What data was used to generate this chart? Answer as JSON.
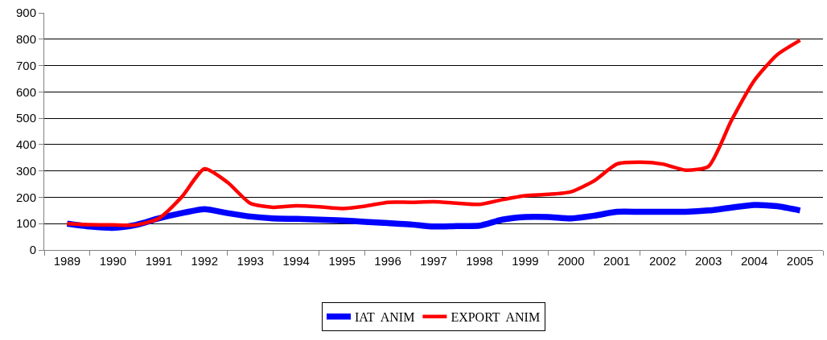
{
  "chart_data": {
    "type": "line",
    "x": [
      1989,
      1989.5,
      1990,
      1990.5,
      1991,
      1991.5,
      1992,
      1992.5,
      1993,
      1993.5,
      1994,
      1994.5,
      1995,
      1995.5,
      1996,
      1996.5,
      1997,
      1997.5,
      1998,
      1998.5,
      1999,
      1999.5,
      2000,
      2000.5,
      2001,
      2001.5,
      2002,
      2002.5,
      2003,
      2003.5,
      2004,
      2004.5,
      2005
    ],
    "series": [
      {
        "name": "IAT  ANIM",
        "color": "#0000ff",
        "values": [
          100,
          89,
          84,
          95,
          120,
          140,
          155,
          140,
          127,
          120,
          118,
          115,
          112,
          107,
          102,
          97,
          89,
          91,
          92,
          115,
          125,
          125,
          120,
          130,
          145,
          145,
          145,
          145,
          150,
          161,
          171,
          166,
          150
        ]
      },
      {
        "name": "EXPORT  ANIM",
        "color": "#ff0000",
        "values": [
          100,
          96,
          95,
          95,
          120,
          201,
          308,
          257,
          177,
          162,
          168,
          164,
          157,
          166,
          181,
          181,
          183,
          178,
          173,
          191,
          206,
          211,
          221,
          262,
          326,
          333,
          326,
          303,
          317,
          491,
          643,
          741,
          796
        ]
      }
    ],
    "xlim": [
      1988.5,
      2005.5
    ],
    "xticks": [
      1989,
      1990,
      1991,
      1992,
      1993,
      1994,
      1995,
      1996,
      1997,
      1998,
      1999,
      2000,
      2001,
      2002,
      2003,
      2004,
      2005
    ],
    "ylim": [
      0,
      900
    ],
    "yticks": [
      0,
      100,
      200,
      300,
      400,
      500,
      600,
      700,
      800,
      900
    ],
    "grid": "y",
    "legend": "bottom",
    "marker": "none",
    "line_style": "solid"
  }
}
